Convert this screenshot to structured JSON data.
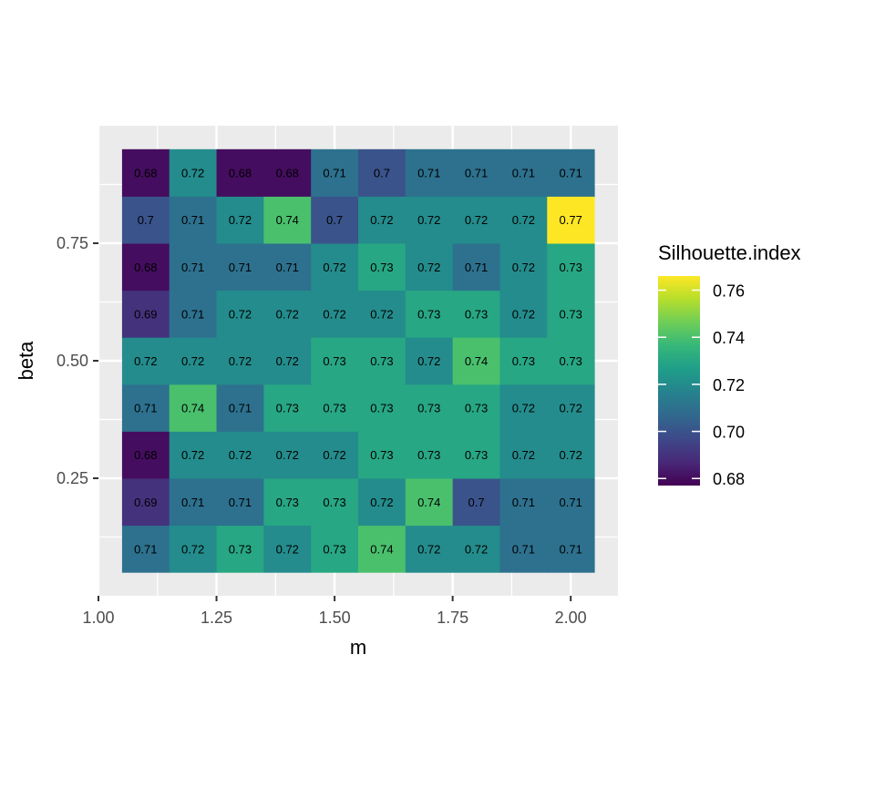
{
  "chart_data": {
    "type": "heatmap",
    "title": "",
    "xlabel": "m",
    "ylabel": "beta",
    "x": [
      1.1,
      1.2,
      1.3,
      1.4,
      1.5,
      1.6,
      1.7,
      1.8,
      1.9,
      2.0
    ],
    "y": [
      0.1,
      0.2,
      0.3,
      0.4,
      0.5,
      0.6,
      0.7,
      0.8,
      0.9
    ],
    "xlim": [
      1.0,
      2.1
    ],
    "ylim": [
      0.0,
      1.0
    ],
    "x_ticks": [
      "1.00",
      "1.25",
      "1.50",
      "1.75",
      "2.00"
    ],
    "y_ticks": [
      "0.25",
      "0.50",
      "0.75"
    ],
    "x_tick_values": [
      1.0,
      1.25,
      1.5,
      1.75,
      2.0
    ],
    "y_tick_values": [
      0.25,
      0.5,
      0.75
    ],
    "values": [
      [
        0.71,
        0.72,
        0.73,
        0.72,
        0.73,
        0.74,
        0.72,
        0.72,
        0.71,
        0.71
      ],
      [
        0.69,
        0.71,
        0.71,
        0.73,
        0.73,
        0.72,
        0.74,
        0.7,
        0.71,
        0.71
      ],
      [
        0.68,
        0.72,
        0.72,
        0.72,
        0.72,
        0.73,
        0.73,
        0.73,
        0.72,
        0.72
      ],
      [
        0.71,
        0.74,
        0.71,
        0.73,
        0.73,
        0.73,
        0.73,
        0.73,
        0.72,
        0.72
      ],
      [
        0.72,
        0.72,
        0.72,
        0.72,
        0.73,
        0.73,
        0.72,
        0.74,
        0.73,
        0.73
      ],
      [
        0.69,
        0.71,
        0.72,
        0.72,
        0.72,
        0.72,
        0.73,
        0.73,
        0.72,
        0.73
      ],
      [
        0.68,
        0.71,
        0.71,
        0.71,
        0.72,
        0.73,
        0.72,
        0.71,
        0.72,
        0.73
      ],
      [
        0.7,
        0.71,
        0.72,
        0.74,
        0.7,
        0.72,
        0.72,
        0.72,
        0.72,
        0.77
      ],
      [
        0.68,
        0.72,
        0.68,
        0.68,
        0.71,
        0.7,
        0.71,
        0.71,
        0.71,
        0.71
      ]
    ],
    "labels": [
      [
        "0.71",
        "0.72",
        "0.73",
        "0.72",
        "0.73",
        "0.74",
        "0.72",
        "0.72",
        "0.71",
        "0.71"
      ],
      [
        "0.69",
        "0.71",
        "0.71",
        "0.73",
        "0.73",
        "0.72",
        "0.74",
        "0.7",
        "0.71",
        "0.71"
      ],
      [
        "0.68",
        "0.72",
        "0.72",
        "0.72",
        "0.72",
        "0.73",
        "0.73",
        "0.73",
        "0.72",
        "0.72"
      ],
      [
        "0.71",
        "0.74",
        "0.71",
        "0.73",
        "0.73",
        "0.73",
        "0.73",
        "0.73",
        "0.72",
        "0.72"
      ],
      [
        "0.72",
        "0.72",
        "0.72",
        "0.72",
        "0.73",
        "0.73",
        "0.72",
        "0.74",
        "0.73",
        "0.73"
      ],
      [
        "0.69",
        "0.71",
        "0.72",
        "0.72",
        "0.72",
        "0.72",
        "0.73",
        "0.73",
        "0.72",
        "0.73"
      ],
      [
        "0.68",
        "0.71",
        "0.71",
        "0.71",
        "0.72",
        "0.73",
        "0.72",
        "0.71",
        "0.72",
        "0.73"
      ],
      [
        "0.7",
        "0.71",
        "0.72",
        "0.74",
        "0.7",
        "0.72",
        "0.72",
        "0.72",
        "0.72",
        "0.77"
      ],
      [
        "0.68",
        "0.72",
        "0.68",
        "0.68",
        "0.71",
        "0.7",
        "0.71",
        "0.71",
        "0.71",
        "0.71"
      ]
    ],
    "legend": {
      "title": "Silhouette.index",
      "placement": "right",
      "ticks": [
        "0.68",
        "0.70",
        "0.72",
        "0.74",
        "0.76"
      ],
      "tick_values": [
        0.68,
        0.7,
        0.72,
        0.74,
        0.76
      ],
      "range": [
        0.677,
        0.766
      ]
    },
    "colormap": [
      "#440154",
      "#482878",
      "#3e4989",
      "#31688e",
      "#26828e",
      "#1f9e89",
      "#35b779",
      "#6ece58",
      "#b5de2b",
      "#fde725"
    ],
    "grid": true,
    "panel_background": "#ebebeb",
    "grid_color": "#ffffff"
  }
}
